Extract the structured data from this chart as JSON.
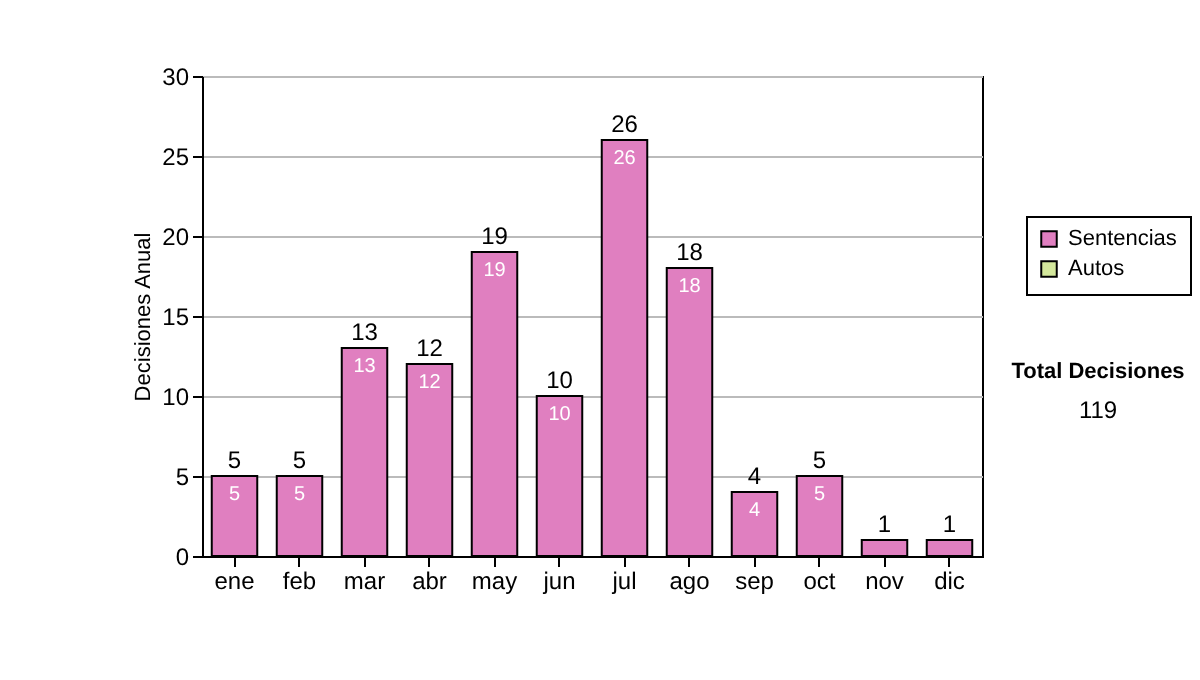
{
  "chart_data": {
    "type": "bar",
    "ylabel": "Decisiones Anual",
    "categories": [
      "ene",
      "feb",
      "mar",
      "abr",
      "may",
      "jun",
      "jul",
      "ago",
      "sep",
      "oct",
      "nov",
      "dic"
    ],
    "series": [
      {
        "name": "Sentencias",
        "color": "#e07fc0",
        "values": [
          5,
          5,
          13,
          12,
          19,
          10,
          26,
          18,
          4,
          5,
          1,
          1
        ],
        "value_labels": [
          "5",
          "5",
          "13",
          "12",
          "19",
          "10",
          "26",
          "18",
          "4",
          "5",
          null,
          null
        ]
      },
      {
        "name": "Autos",
        "color": "#d4e89c",
        "values": [
          null,
          null,
          null,
          null,
          null,
          null,
          null,
          null,
          null,
          null,
          null,
          null
        ]
      }
    ],
    "totals": [
      "5",
      "5",
      "13",
      "12",
      "19",
      "10",
      "26",
      "18",
      "4",
      "5",
      "1",
      "1"
    ],
    "ylim": [
      0,
      30
    ],
    "yticks": [
      0,
      5,
      10,
      15,
      20,
      25,
      30
    ],
    "grid": "y",
    "legend": "right",
    "annotations": [
      "Total Decisiones",
      "119"
    ]
  }
}
